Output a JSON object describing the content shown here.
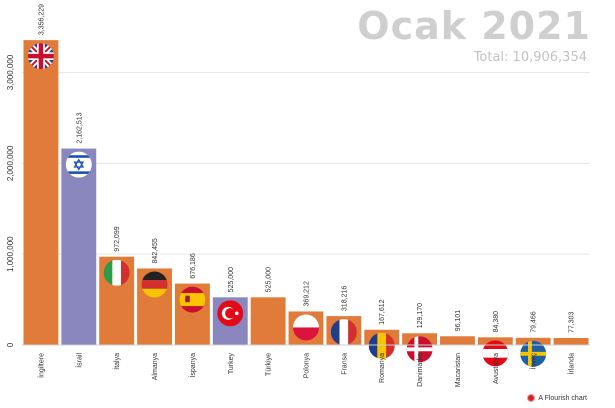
{
  "header": {
    "title": "Ocak 2021",
    "total": "Total: 10,906,354"
  },
  "credit": {
    "label": "A Flourish chart",
    "icon": "flourish-logo-icon"
  },
  "chart_data": {
    "type": "bar",
    "title": "Ocak 2021",
    "subtitle": "Total: 10,906,354",
    "xlabel": "",
    "ylabel": "",
    "ylim": [
      0,
      3600000
    ],
    "yticks": [
      0,
      1000000,
      2000000,
      3000000
    ],
    "ytick_labels": [
      "0",
      "1,000,000",
      "2,000,000",
      "3,000,000"
    ],
    "grid": true,
    "legend": "none",
    "categories": [
      "İngiltere",
      "İsrail",
      "İtalya",
      "Almanya",
      "İspanya",
      "Turkey",
      "Türkiye",
      "Polonya",
      "Fransa",
      "Romanya",
      "Danimarka",
      "Macaristan",
      "Avusturya",
      "İsveç",
      "İrlanda"
    ],
    "values": [
      3356229,
      2162513,
      972099,
      842455,
      676186,
      525000,
      525000,
      369212,
      318216,
      167612,
      129170,
      96101,
      84380,
      79466,
      77303
    ],
    "value_labels": [
      "3,356,229",
      "2,162,513",
      "972,099",
      "842,455",
      "676,186",
      "525,000",
      "525,000",
      "369,212",
      "318,216",
      "167,612",
      "129,170",
      "96,101",
      "84,380",
      "79,466",
      "77,303"
    ],
    "bar_colors": [
      "#e07b39",
      "#8a87bf",
      "#e07b39",
      "#e07b39",
      "#e07b39",
      "#8a87bf",
      "#e07b39",
      "#e07b39",
      "#e07b39",
      "#e07b39",
      "#e07b39",
      "#e07b39",
      "#e07b39",
      "#e07b39",
      "#e07b39"
    ],
    "flags": [
      "uk-flag-icon",
      "israel-flag-icon",
      "italy-flag-icon",
      "germany-flag-icon",
      "spain-flag-icon",
      "turkey-flag-icon",
      "",
      "poland-flag-icon",
      "france-flag-icon",
      "romania-flag-icon",
      "denmark-flag-icon",
      "",
      "austria-flag-icon",
      "sweden-flag-icon",
      ""
    ],
    "colors": {
      "primary": "#e07b39",
      "highlight": "#8a87bf",
      "grid": "#e6e6e6",
      "title": "#cfcfcf"
    }
  }
}
